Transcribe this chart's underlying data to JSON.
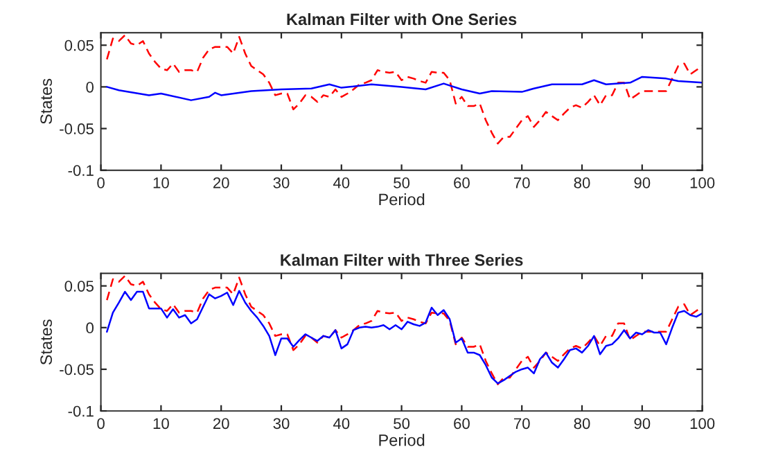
{
  "chart_data": [
    {
      "type": "line",
      "title": "Kalman Filter with One Series",
      "xlabel": "Period",
      "ylabel": "States",
      "xlim": [
        0,
        100
      ],
      "ylim": [
        -0.1,
        0.065
      ],
      "xticks": [
        0,
        10,
        20,
        30,
        40,
        50,
        60,
        70,
        80,
        90,
        100
      ],
      "yticks": [
        -0.1,
        -0.05,
        0,
        0.05
      ],
      "grid": false,
      "series": [
        {
          "color": "#ff0000",
          "line_style": "dashed",
          "x": [
            1,
            2,
            3,
            4,
            5,
            6,
            7,
            8,
            9,
            10,
            11,
            12,
            13,
            14,
            15,
            16,
            17,
            18,
            19,
            20,
            21,
            22,
            23,
            24,
            25,
            26,
            27,
            28,
            29,
            30,
            31,
            32,
            33,
            34,
            35,
            36,
            37,
            38,
            39,
            40,
            41,
            42,
            43,
            44,
            45,
            46,
            47,
            48,
            49,
            50,
            51,
            52,
            53,
            54,
            55,
            56,
            57,
            58,
            59,
            60,
            61,
            62,
            63,
            64,
            65,
            66,
            67,
            68,
            69,
            70,
            71,
            72,
            73,
            74,
            75,
            76,
            77,
            78,
            79,
            80,
            81,
            82,
            83,
            84,
            85,
            86,
            87,
            88,
            89,
            90,
            91,
            92,
            93,
            94,
            95,
            96,
            97,
            98,
            99,
            100
          ],
          "values": [
            0.033,
            0.058,
            0.055,
            0.062,
            0.052,
            0.05,
            0.055,
            0.04,
            0.03,
            0.022,
            0.02,
            0.028,
            0.018,
            0.02,
            0.02,
            0.018,
            0.035,
            0.045,
            0.048,
            0.048,
            0.048,
            0.04,
            0.06,
            0.04,
            0.025,
            0.02,
            0.015,
            0.005,
            -0.01,
            -0.008,
            -0.008,
            -0.027,
            -0.02,
            -0.01,
            -0.012,
            -0.018,
            -0.01,
            -0.012,
            -0.003,
            -0.012,
            -0.008,
            -0.003,
            0.003,
            0.005,
            0.008,
            0.02,
            0.018,
            0.017,
            0.018,
            0.008,
            0.012,
            0.01,
            0.007,
            0.005,
            0.018,
            0.017,
            0.017,
            0.008,
            -0.02,
            -0.012,
            -0.023,
            -0.023,
            -0.02,
            -0.04,
            -0.055,
            -0.068,
            -0.06,
            -0.06,
            -0.05,
            -0.04,
            -0.035,
            -0.048,
            -0.04,
            -0.03,
            -0.035,
            -0.04,
            -0.032,
            -0.025,
            -0.022,
            -0.025,
            -0.018,
            -0.01,
            -0.022,
            -0.01,
            -0.01,
            0.005,
            0.005,
            -0.015,
            -0.01,
            -0.005,
            -0.005,
            -0.005,
            -0.005,
            -0.005,
            0.01,
            0.025,
            0.028,
            0.015,
            0.02,
            0.025
          ]
        },
        {
          "color": "#0000ff",
          "line_style": "solid",
          "x": [
            1,
            3,
            8,
            10,
            15,
            18,
            19,
            20,
            25,
            30,
            35,
            38,
            40,
            45,
            50,
            54,
            57,
            60,
            63,
            65,
            70,
            72,
            75,
            80,
            82,
            84,
            88,
            90,
            94,
            96,
            100
          ],
          "values": [
            0,
            -0.004,
            -0.01,
            -0.008,
            -0.016,
            -0.012,
            -0.007,
            -0.01,
            -0.005,
            -0.003,
            -0.002,
            0.003,
            -0.001,
            0.003,
            0,
            -0.003,
            0.004,
            -0.003,
            -0.008,
            -0.005,
            -0.006,
            -0.002,
            0.003,
            0.003,
            0.008,
            0.003,
            0.005,
            0.012,
            0.01,
            0.007,
            0.005
          ]
        }
      ]
    },
    {
      "type": "line",
      "title": "Kalman Filter with Three Series",
      "xlabel": "Period",
      "ylabel": "States",
      "xlim": [
        0,
        100
      ],
      "ylim": [
        -0.1,
        0.065
      ],
      "xticks": [
        0,
        10,
        20,
        30,
        40,
        50,
        60,
        70,
        80,
        90,
        100
      ],
      "yticks": [
        -0.1,
        -0.05,
        0,
        0.05
      ],
      "grid": false,
      "series": [
        {
          "color": "#ff0000",
          "line_style": "dashed",
          "x": [
            1,
            2,
            3,
            4,
            5,
            6,
            7,
            8,
            9,
            10,
            11,
            12,
            13,
            14,
            15,
            16,
            17,
            18,
            19,
            20,
            21,
            22,
            23,
            24,
            25,
            26,
            27,
            28,
            29,
            30,
            31,
            32,
            33,
            34,
            35,
            36,
            37,
            38,
            39,
            40,
            41,
            42,
            43,
            44,
            45,
            46,
            47,
            48,
            49,
            50,
            51,
            52,
            53,
            54,
            55,
            56,
            57,
            58,
            59,
            60,
            61,
            62,
            63,
            64,
            65,
            66,
            67,
            68,
            69,
            70,
            71,
            72,
            73,
            74,
            75,
            76,
            77,
            78,
            79,
            80,
            81,
            82,
            83,
            84,
            85,
            86,
            87,
            88,
            89,
            90,
            91,
            92,
            93,
            94,
            95,
            96,
            97,
            98,
            99,
            100
          ],
          "values": [
            0.033,
            0.058,
            0.055,
            0.062,
            0.052,
            0.05,
            0.055,
            0.04,
            0.03,
            0.022,
            0.02,
            0.028,
            0.018,
            0.02,
            0.02,
            0.018,
            0.035,
            0.045,
            0.048,
            0.048,
            0.048,
            0.04,
            0.06,
            0.04,
            0.025,
            0.02,
            0.015,
            0.005,
            -0.01,
            -0.008,
            -0.008,
            -0.027,
            -0.02,
            -0.01,
            -0.012,
            -0.018,
            -0.01,
            -0.012,
            -0.003,
            -0.012,
            -0.008,
            -0.003,
            0.003,
            0.005,
            0.008,
            0.02,
            0.018,
            0.017,
            0.018,
            0.008,
            0.012,
            0.01,
            0.007,
            0.005,
            0.018,
            0.017,
            0.017,
            0.008,
            -0.02,
            -0.012,
            -0.023,
            -0.023,
            -0.02,
            -0.04,
            -0.055,
            -0.068,
            -0.06,
            -0.06,
            -0.05,
            -0.04,
            -0.035,
            -0.048,
            -0.04,
            -0.03,
            -0.035,
            -0.04,
            -0.032,
            -0.025,
            -0.022,
            -0.025,
            -0.018,
            -0.01,
            -0.022,
            -0.01,
            -0.01,
            0.005,
            0.005,
            -0.015,
            -0.01,
            -0.005,
            -0.005,
            -0.005,
            -0.005,
            -0.005,
            0.01,
            0.025,
            0.028,
            0.015,
            0.02,
            0.025
          ]
        },
        {
          "color": "#0000ff",
          "line_style": "solid",
          "x": [
            1,
            2,
            3,
            4,
            5,
            6,
            7,
            8,
            9,
            10,
            11,
            12,
            13,
            14,
            15,
            16,
            17,
            18,
            19,
            20,
            21,
            22,
            23,
            24,
            25,
            26,
            27,
            28,
            29,
            30,
            31,
            32,
            33,
            34,
            35,
            36,
            37,
            38,
            39,
            40,
            41,
            42,
            43,
            44,
            45,
            46,
            47,
            48,
            49,
            50,
            51,
            52,
            53,
            54,
            55,
            56,
            57,
            58,
            59,
            60,
            61,
            62,
            63,
            64,
            65,
            66,
            67,
            68,
            69,
            70,
            71,
            72,
            73,
            74,
            75,
            76,
            77,
            78,
            79,
            80,
            81,
            82,
            83,
            84,
            85,
            86,
            87,
            88,
            89,
            90,
            91,
            92,
            93,
            94,
            95,
            96,
            97,
            98,
            99,
            100
          ],
          "values": [
            -0.005,
            0.018,
            0.03,
            0.043,
            0.033,
            0.043,
            0.043,
            0.023,
            0.023,
            0.023,
            0.012,
            0.022,
            0.012,
            0.015,
            0.005,
            0.01,
            0.025,
            0.04,
            0.035,
            0.038,
            0.042,
            0.027,
            0.044,
            0.03,
            0.02,
            0.012,
            0.002,
            -0.01,
            -0.033,
            -0.013,
            -0.013,
            -0.023,
            -0.015,
            -0.008,
            -0.012,
            -0.016,
            -0.01,
            -0.012,
            -0.003,
            -0.025,
            -0.02,
            -0.003,
            0,
            0.001,
            0,
            0.001,
            0.003,
            -0.002,
            0.003,
            -0.002,
            0.007,
            0.004,
            0.002,
            0.006,
            0.024,
            0.015,
            0.021,
            0.01,
            -0.018,
            -0.013,
            -0.03,
            -0.03,
            -0.033,
            -0.045,
            -0.06,
            -0.067,
            -0.063,
            -0.058,
            -0.053,
            -0.05,
            -0.048,
            -0.055,
            -0.038,
            -0.03,
            -0.042,
            -0.048,
            -0.038,
            -0.027,
            -0.025,
            -0.03,
            -0.022,
            -0.01,
            -0.032,
            -0.022,
            -0.02,
            -0.013,
            -0.003,
            -0.013,
            -0.006,
            -0.008,
            -0.003,
            -0.006,
            -0.006,
            -0.02,
            0,
            0.018,
            0.02,
            0.015,
            0.013,
            0.017
          ]
        }
      ]
    }
  ]
}
